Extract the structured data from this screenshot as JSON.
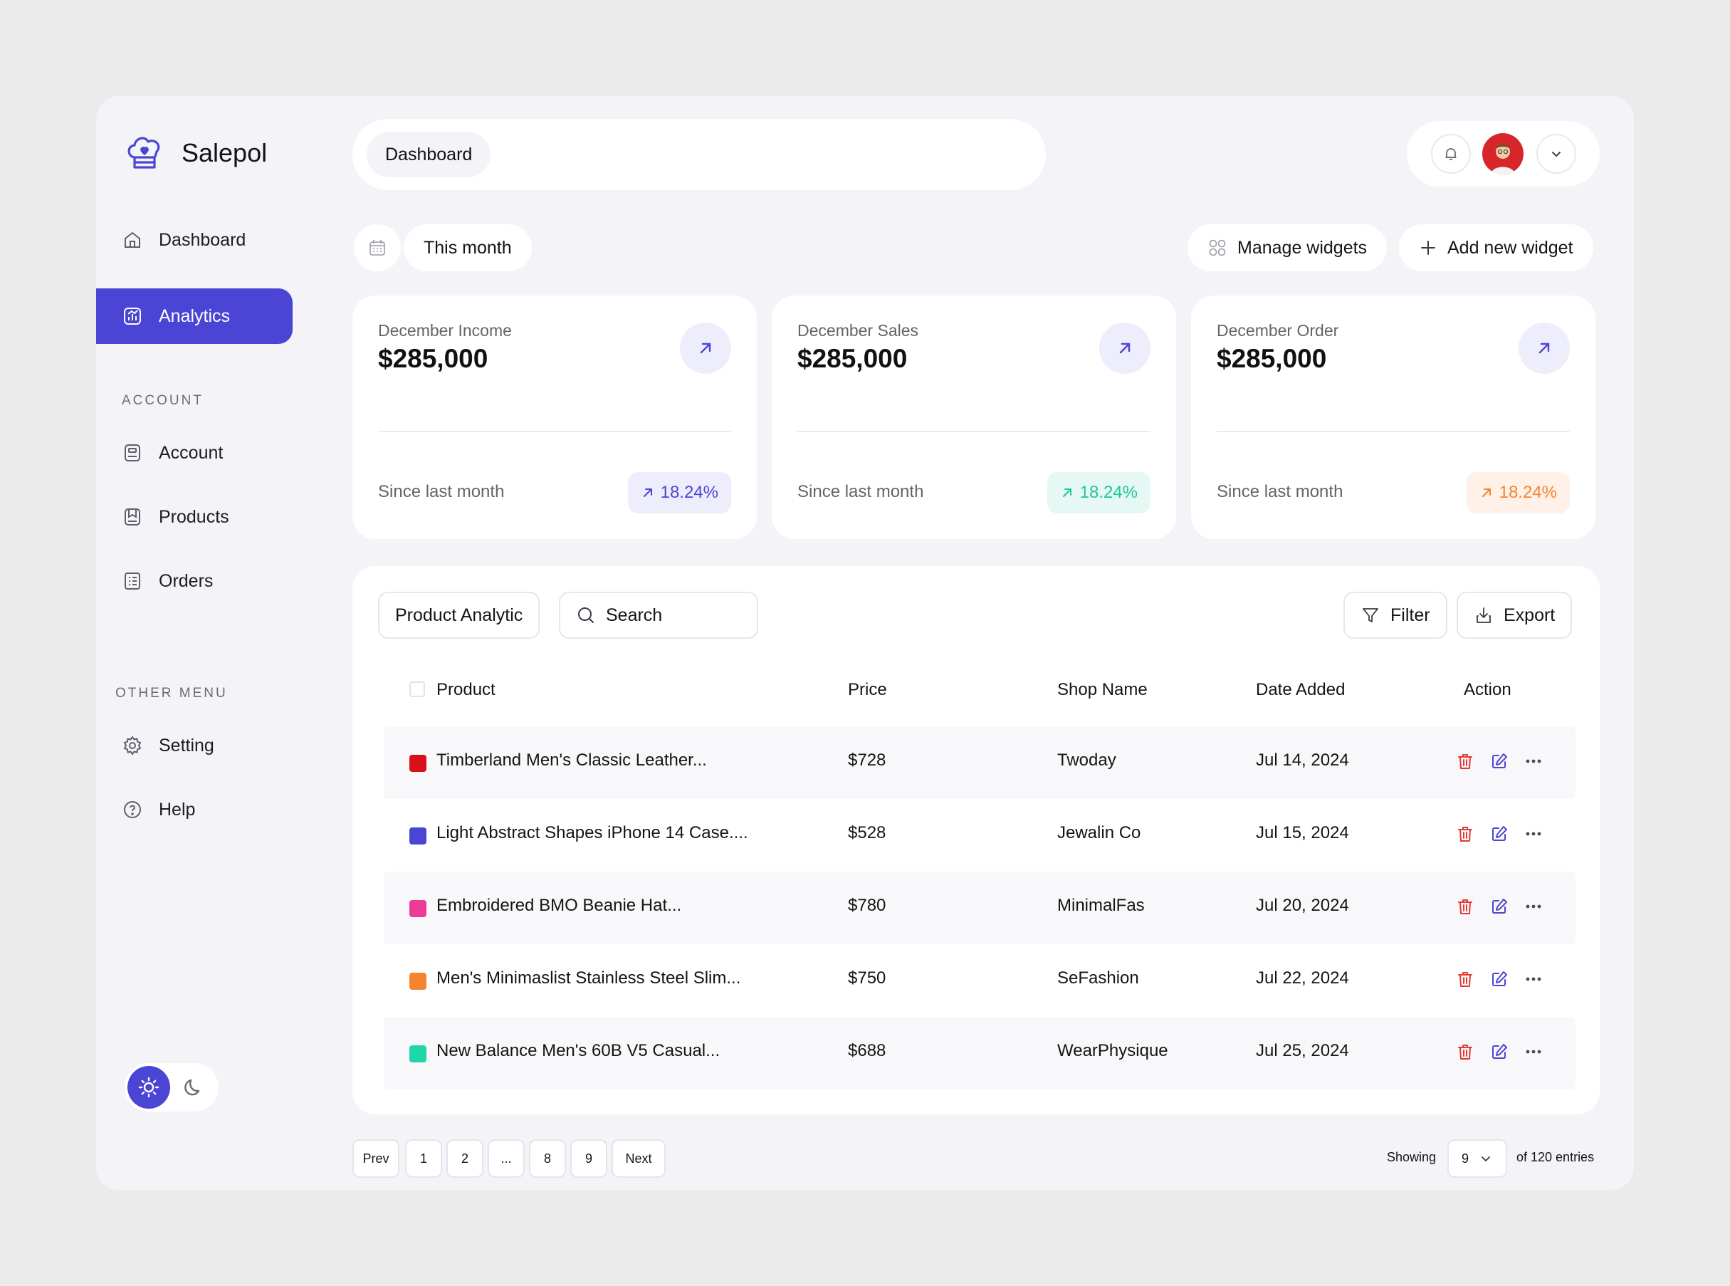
{
  "app": {
    "name": "Salepol"
  },
  "sidebar": {
    "main": [
      {
        "label": "Dashboard",
        "icon": "home-icon",
        "active": false
      },
      {
        "label": "Analytics",
        "icon": "analytics-icon",
        "active": true
      }
    ],
    "account_section": "ACCOUNT",
    "account_items": [
      {
        "label": "Account",
        "icon": "account-icon"
      },
      {
        "label": "Products",
        "icon": "products-icon"
      },
      {
        "label": "Orders",
        "icon": "orders-icon"
      }
    ],
    "other_section": "OTHER MENU",
    "other_items": [
      {
        "label": "Setting",
        "icon": "gear-icon"
      },
      {
        "label": "Help",
        "icon": "help-icon"
      }
    ],
    "theme": {
      "selected": "light"
    }
  },
  "header": {
    "breadcrumb": "Dashboard"
  },
  "toolbar": {
    "period": "This month",
    "manage": "Manage widgets",
    "add": "Add new widget"
  },
  "colors": {
    "accent": "#4b45d6",
    "badge_purple_bg": "#eeedfb",
    "badge_purple_fg": "#4b45d6",
    "badge_green_bg": "#e6f8f3",
    "badge_green_fg": "#1fc79a",
    "badge_orange_bg": "#fff1e8",
    "badge_orange_fg": "#f5842e",
    "delete": "#e53935"
  },
  "stats": [
    {
      "label": "December Income",
      "value": "$285,000",
      "since": "Since last month",
      "change": "18.24%",
      "tone": "purple"
    },
    {
      "label": "December Sales",
      "value": "$285,000",
      "since": "Since last month",
      "change": "18.24%",
      "tone": "green"
    },
    {
      "label": "December Order",
      "value": "$285,000",
      "since": "Since last month",
      "change": "18.24%",
      "tone": "orange"
    }
  ],
  "table": {
    "tab": "Product Analytic",
    "search_placeholder": "Search",
    "filter": "Filter",
    "export": "Export",
    "columns": [
      "Product",
      "Price",
      "Shop Name",
      "Date Added",
      "Action"
    ],
    "rows": [
      {
        "product": "Timberland Men's Classic  Leather...",
        "price": "$728",
        "shop": "Twoday",
        "date": "Jul 14, 2024",
        "color": "#d9101c"
      },
      {
        "product": "Light Abstract Shapes iPhone 14 Case....",
        "price": "$528",
        "shop": "Jewalin Co",
        "date": "Jul 15, 2024",
        "color": "#4b45d6"
      },
      {
        "product": "Embroidered BMO Beanie Hat...",
        "price": "$780",
        "shop": "MinimalFas",
        "date": "Jul 20, 2024",
        "color": "#ec3a97"
      },
      {
        "product": "Men's Minimaslist Stainless Steel Slim...",
        "price": "$750",
        "shop": "SeFashion",
        "date": "Jul 22, 2024",
        "color": "#f5842e"
      },
      {
        "product": "New Balance Men's 60B V5 Casual...",
        "price": "$688",
        "shop": "WearPhysique",
        "date": "Jul 25, 2024",
        "color": "#1fd6a8"
      }
    ]
  },
  "pagination": {
    "prev": "Prev",
    "pages": [
      "1",
      "2",
      "...",
      "8",
      "9"
    ],
    "next": "Next",
    "showing": "Showing",
    "per_page": "9",
    "total": "of 120 entries"
  }
}
